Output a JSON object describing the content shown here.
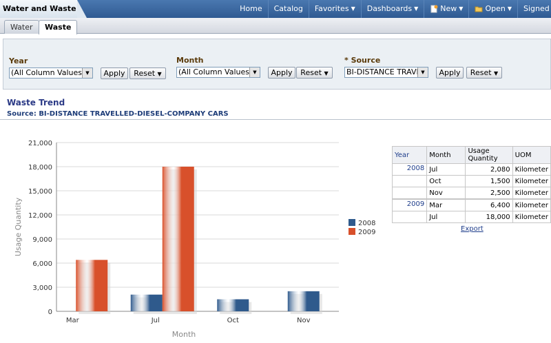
{
  "app": {
    "title": "Water and Waste"
  },
  "nav": [
    "Home",
    "Catalog",
    "Favorites",
    "Dashboards",
    "New",
    "Open",
    "Signed In"
  ],
  "tabs": [
    "Water",
    "Waste"
  ],
  "prompts": {
    "year": {
      "label": "Year",
      "value": "(All Column Values)"
    },
    "month": {
      "label": "Month",
      "value": "(All Column Values)"
    },
    "source": {
      "label": "* Source",
      "value": "BI-DISTANCE TRAVELLED-DIESEL-COMPANY CARS"
    },
    "apply_label": "Apply",
    "reset_label": "Reset"
  },
  "report": {
    "title": "Waste Trend",
    "subtitle": "Source: BI-DISTANCE TRAVELLED-DIESEL-COMPANY CARS"
  },
  "chart_data": {
    "type": "bar",
    "categories": [
      "Mar",
      "Jul",
      "Oct",
      "Nov"
    ],
    "series": [
      {
        "name": "2008",
        "color": "#2f5a8c",
        "values": [
          null,
          2080,
          1500,
          2500
        ]
      },
      {
        "name": "2009",
        "color": "#d8502b",
        "values": [
          6400,
          18000,
          null,
          null
        ]
      }
    ],
    "xlabel": "Month",
    "ylabel": "Usage Quantity",
    "ylim": [
      0,
      21000
    ],
    "yticks": [
      "0",
      "3,000",
      "6,000",
      "9,000",
      "12,000",
      "15,000",
      "18,000",
      "21,000"
    ],
    "grid": true,
    "legend": "right"
  },
  "table": {
    "headers": [
      "Year",
      "Month",
      "Usage Quantity",
      "UOM"
    ],
    "rows": [
      {
        "year": "2008",
        "month": "Jul",
        "qty": "2,080",
        "uom": "Kilometer"
      },
      {
        "year": "",
        "month": "Oct",
        "qty": "1,500",
        "uom": "Kilometer"
      },
      {
        "year": "",
        "month": "Nov",
        "qty": "2,500",
        "uom": "Kilometer"
      },
      {
        "year": "2009",
        "month": "Mar",
        "qty": "6,400",
        "uom": "Kilometer"
      },
      {
        "year": "",
        "month": "Jul",
        "qty": "18,000",
        "uom": "Kilometer"
      }
    ],
    "export_label": "Export"
  }
}
